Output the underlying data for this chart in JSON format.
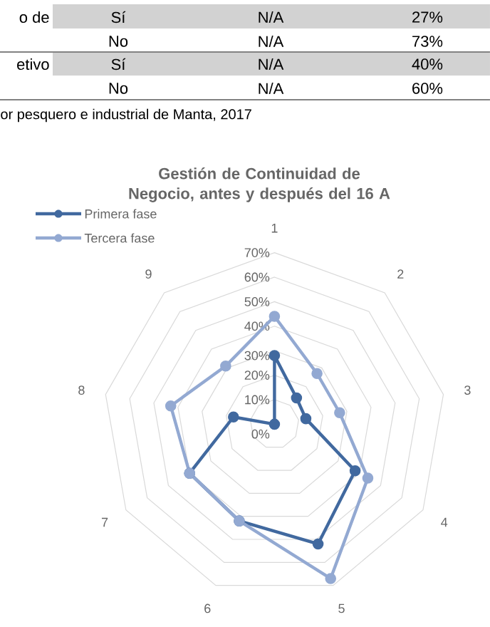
{
  "chart_data": {
    "type": "radar",
    "title": "Gestión de Continuidad de Negocio, antes y después del 16 A",
    "categories": [
      "1",
      "2",
      "3",
      "4",
      "5",
      "6",
      "7",
      "8",
      "9"
    ],
    "series": [
      {
        "name": "Primera fase",
        "color": "#41699f",
        "values": [
          28,
          14,
          13,
          38,
          52,
          42,
          40,
          17,
          0
        ]
      },
      {
        "name": "Tercera fase",
        "color": "#93a9d2",
        "values": [
          44,
          27,
          27,
          44,
          67,
          42,
          40,
          43,
          31
        ]
      }
    ],
    "ylim": [
      0,
      70
    ],
    "yticks": [
      {
        "value": 0,
        "label": "0%"
      },
      {
        "value": 10,
        "label": "10%"
      },
      {
        "value": 20,
        "label": "20%"
      },
      {
        "value": 30,
        "label": "30%"
      },
      {
        "value": 40,
        "label": "40%"
      },
      {
        "value": 50,
        "label": "50%"
      },
      {
        "value": 60,
        "label": "60%"
      },
      {
        "value": 70,
        "label": "70%"
      }
    ],
    "grid": true,
    "legend": "top left",
    "marker": "circle",
    "annotations": [
      "o de",
      "Sí",
      "N/A",
      "27%",
      "No",
      "N/A",
      "73%",
      "etivo",
      "Sí",
      "N/A",
      "40%",
      "No",
      "N/A",
      "60%",
      "or pesquero e industrial de Manta, 2017"
    ]
  }
}
